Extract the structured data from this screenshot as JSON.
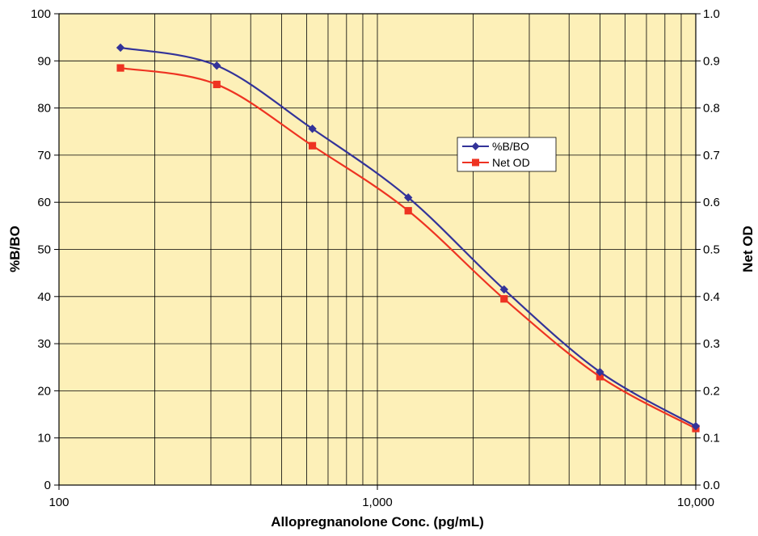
{
  "chart_data": {
    "type": "line",
    "title": "",
    "xlabel": "Allopregnanolone Conc. (pg/mL)",
    "ylabel_left": "%B/BO",
    "ylabel_right": "Net OD",
    "x_scale": "log",
    "xlim": [
      100,
      10000
    ],
    "x_ticks": [
      100,
      1000,
      10000
    ],
    "x_tick_labels": [
      "100",
      "1,000",
      "10,000"
    ],
    "ylim_left": [
      0,
      100
    ],
    "left_ticks": [
      0,
      10,
      20,
      30,
      40,
      50,
      60,
      70,
      80,
      90,
      100
    ],
    "left_tick_labels": [
      "0",
      "10",
      "20",
      "30",
      "40",
      "50",
      "60",
      "70",
      "80",
      "90",
      "100"
    ],
    "ylim_right": [
      0,
      1.0
    ],
    "right_ticks": [
      0,
      0.1,
      0.2,
      0.3,
      0.4,
      0.5,
      0.6,
      0.7,
      0.8,
      0.9,
      1.0
    ],
    "right_tick_labels": [
      "0.0",
      "0.1",
      "0.2",
      "0.3",
      "0.4",
      "0.5",
      "0.6",
      "0.7",
      "0.8",
      "0.9",
      "1.0"
    ],
    "grid": true,
    "legend_position": "center-right",
    "x": [
      156,
      313,
      625,
      1250,
      2500,
      5000,
      10000
    ],
    "series": [
      {
        "name": "%B/BO",
        "axis": "left",
        "color": "#333399",
        "marker": "diamond",
        "values": [
          92.8,
          89.0,
          75.6,
          61.0,
          41.5,
          24.0,
          12.5
        ]
      },
      {
        "name": "Net OD",
        "axis": "right",
        "color": "#ee3322",
        "marker": "square",
        "values": [
          0.885,
          0.85,
          0.72,
          0.582,
          0.395,
          0.23,
          0.12
        ]
      }
    ],
    "colors": {
      "plot_background": "#fdf0b8",
      "grid": "#000000"
    }
  }
}
